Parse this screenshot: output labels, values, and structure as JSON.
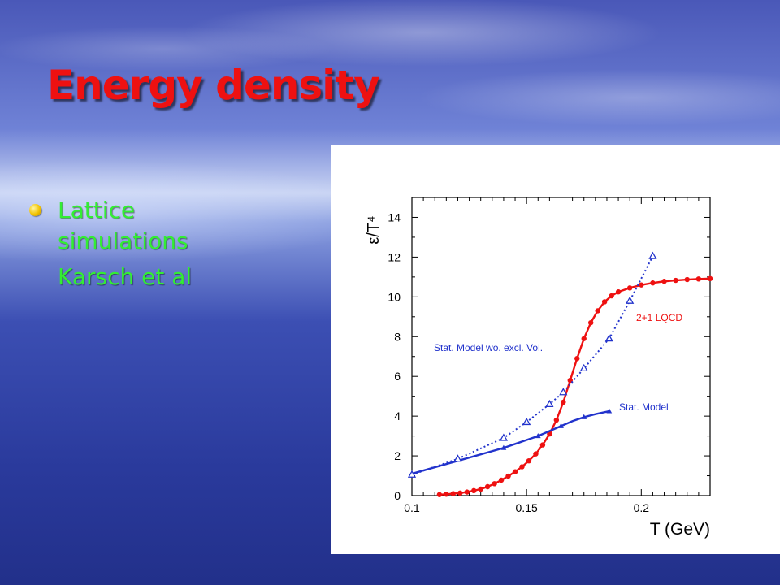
{
  "slide": {
    "title": "Energy density",
    "bullet": "Lattice simulations",
    "subtext": "Karsch et al"
  },
  "colors": {
    "title": "#ee1111",
    "bullet_text": "#33ee33",
    "bullet_dot": "#f2c200",
    "lqcd": "#ee1111",
    "stat_model": "#2233cc"
  },
  "chart_data": {
    "type": "line",
    "xlabel": "T (GeV)",
    "ylabel": "ε/T⁴",
    "xlim": [
      0.1,
      0.23
    ],
    "ylim": [
      0,
      15
    ],
    "x_ticks": [
      0.1,
      0.15,
      0.2
    ],
    "x_tick_labels": [
      "0.1",
      "0.15",
      "0.2"
    ],
    "y_ticks": [
      0,
      2,
      4,
      6,
      8,
      10,
      12,
      14
    ],
    "y_tick_labels": [
      "0",
      "2",
      "4",
      "6",
      "8",
      "10",
      "12",
      "14"
    ],
    "grid": false,
    "series": [
      {
        "name": "2+1 LQCD",
        "color": "#ee1111",
        "style": "solid-dots",
        "x": [
          0.112,
          0.115,
          0.118,
          0.121,
          0.124,
          0.127,
          0.13,
          0.133,
          0.136,
          0.139,
          0.142,
          0.145,
          0.148,
          0.151,
          0.154,
          0.157,
          0.16,
          0.163,
          0.166,
          0.169,
          0.172,
          0.175,
          0.178,
          0.181,
          0.184,
          0.187,
          0.19,
          0.195,
          0.2,
          0.205,
          0.21,
          0.215,
          0.22,
          0.225,
          0.23
        ],
        "y": [
          0.05,
          0.07,
          0.1,
          0.13,
          0.18,
          0.25,
          0.33,
          0.45,
          0.6,
          0.78,
          0.98,
          1.2,
          1.45,
          1.75,
          2.1,
          2.55,
          3.1,
          3.8,
          4.7,
          5.8,
          6.9,
          7.9,
          8.7,
          9.3,
          9.75,
          10.05,
          10.25,
          10.45,
          10.6,
          10.7,
          10.78,
          10.83,
          10.87,
          10.9,
          10.92
        ],
        "label": "2+1 LQCD"
      },
      {
        "name": "Stat. Model",
        "color": "#2233cc",
        "style": "solid-triangles",
        "x": [
          0.1,
          0.12,
          0.14,
          0.15,
          0.155,
          0.16,
          0.165,
          0.17,
          0.175,
          0.18,
          0.186
        ],
        "y": [
          1.1,
          1.75,
          2.4,
          2.8,
          3.0,
          3.25,
          3.5,
          3.75,
          3.95,
          4.1,
          4.25
        ],
        "label": "Stat. Model"
      },
      {
        "name": "Stat. Model wo. excl. Vol.",
        "color": "#2233cc",
        "style": "dotted-triangles",
        "x": [
          0.1,
          0.12,
          0.14,
          0.15,
          0.16,
          0.166,
          0.175,
          0.186,
          0.195,
          0.205
        ],
        "y": [
          1.05,
          1.85,
          2.9,
          3.7,
          4.6,
          5.2,
          6.4,
          7.9,
          9.8,
          12.05
        ],
        "label": "Stat. Model wo. excl. Vol."
      }
    ]
  }
}
